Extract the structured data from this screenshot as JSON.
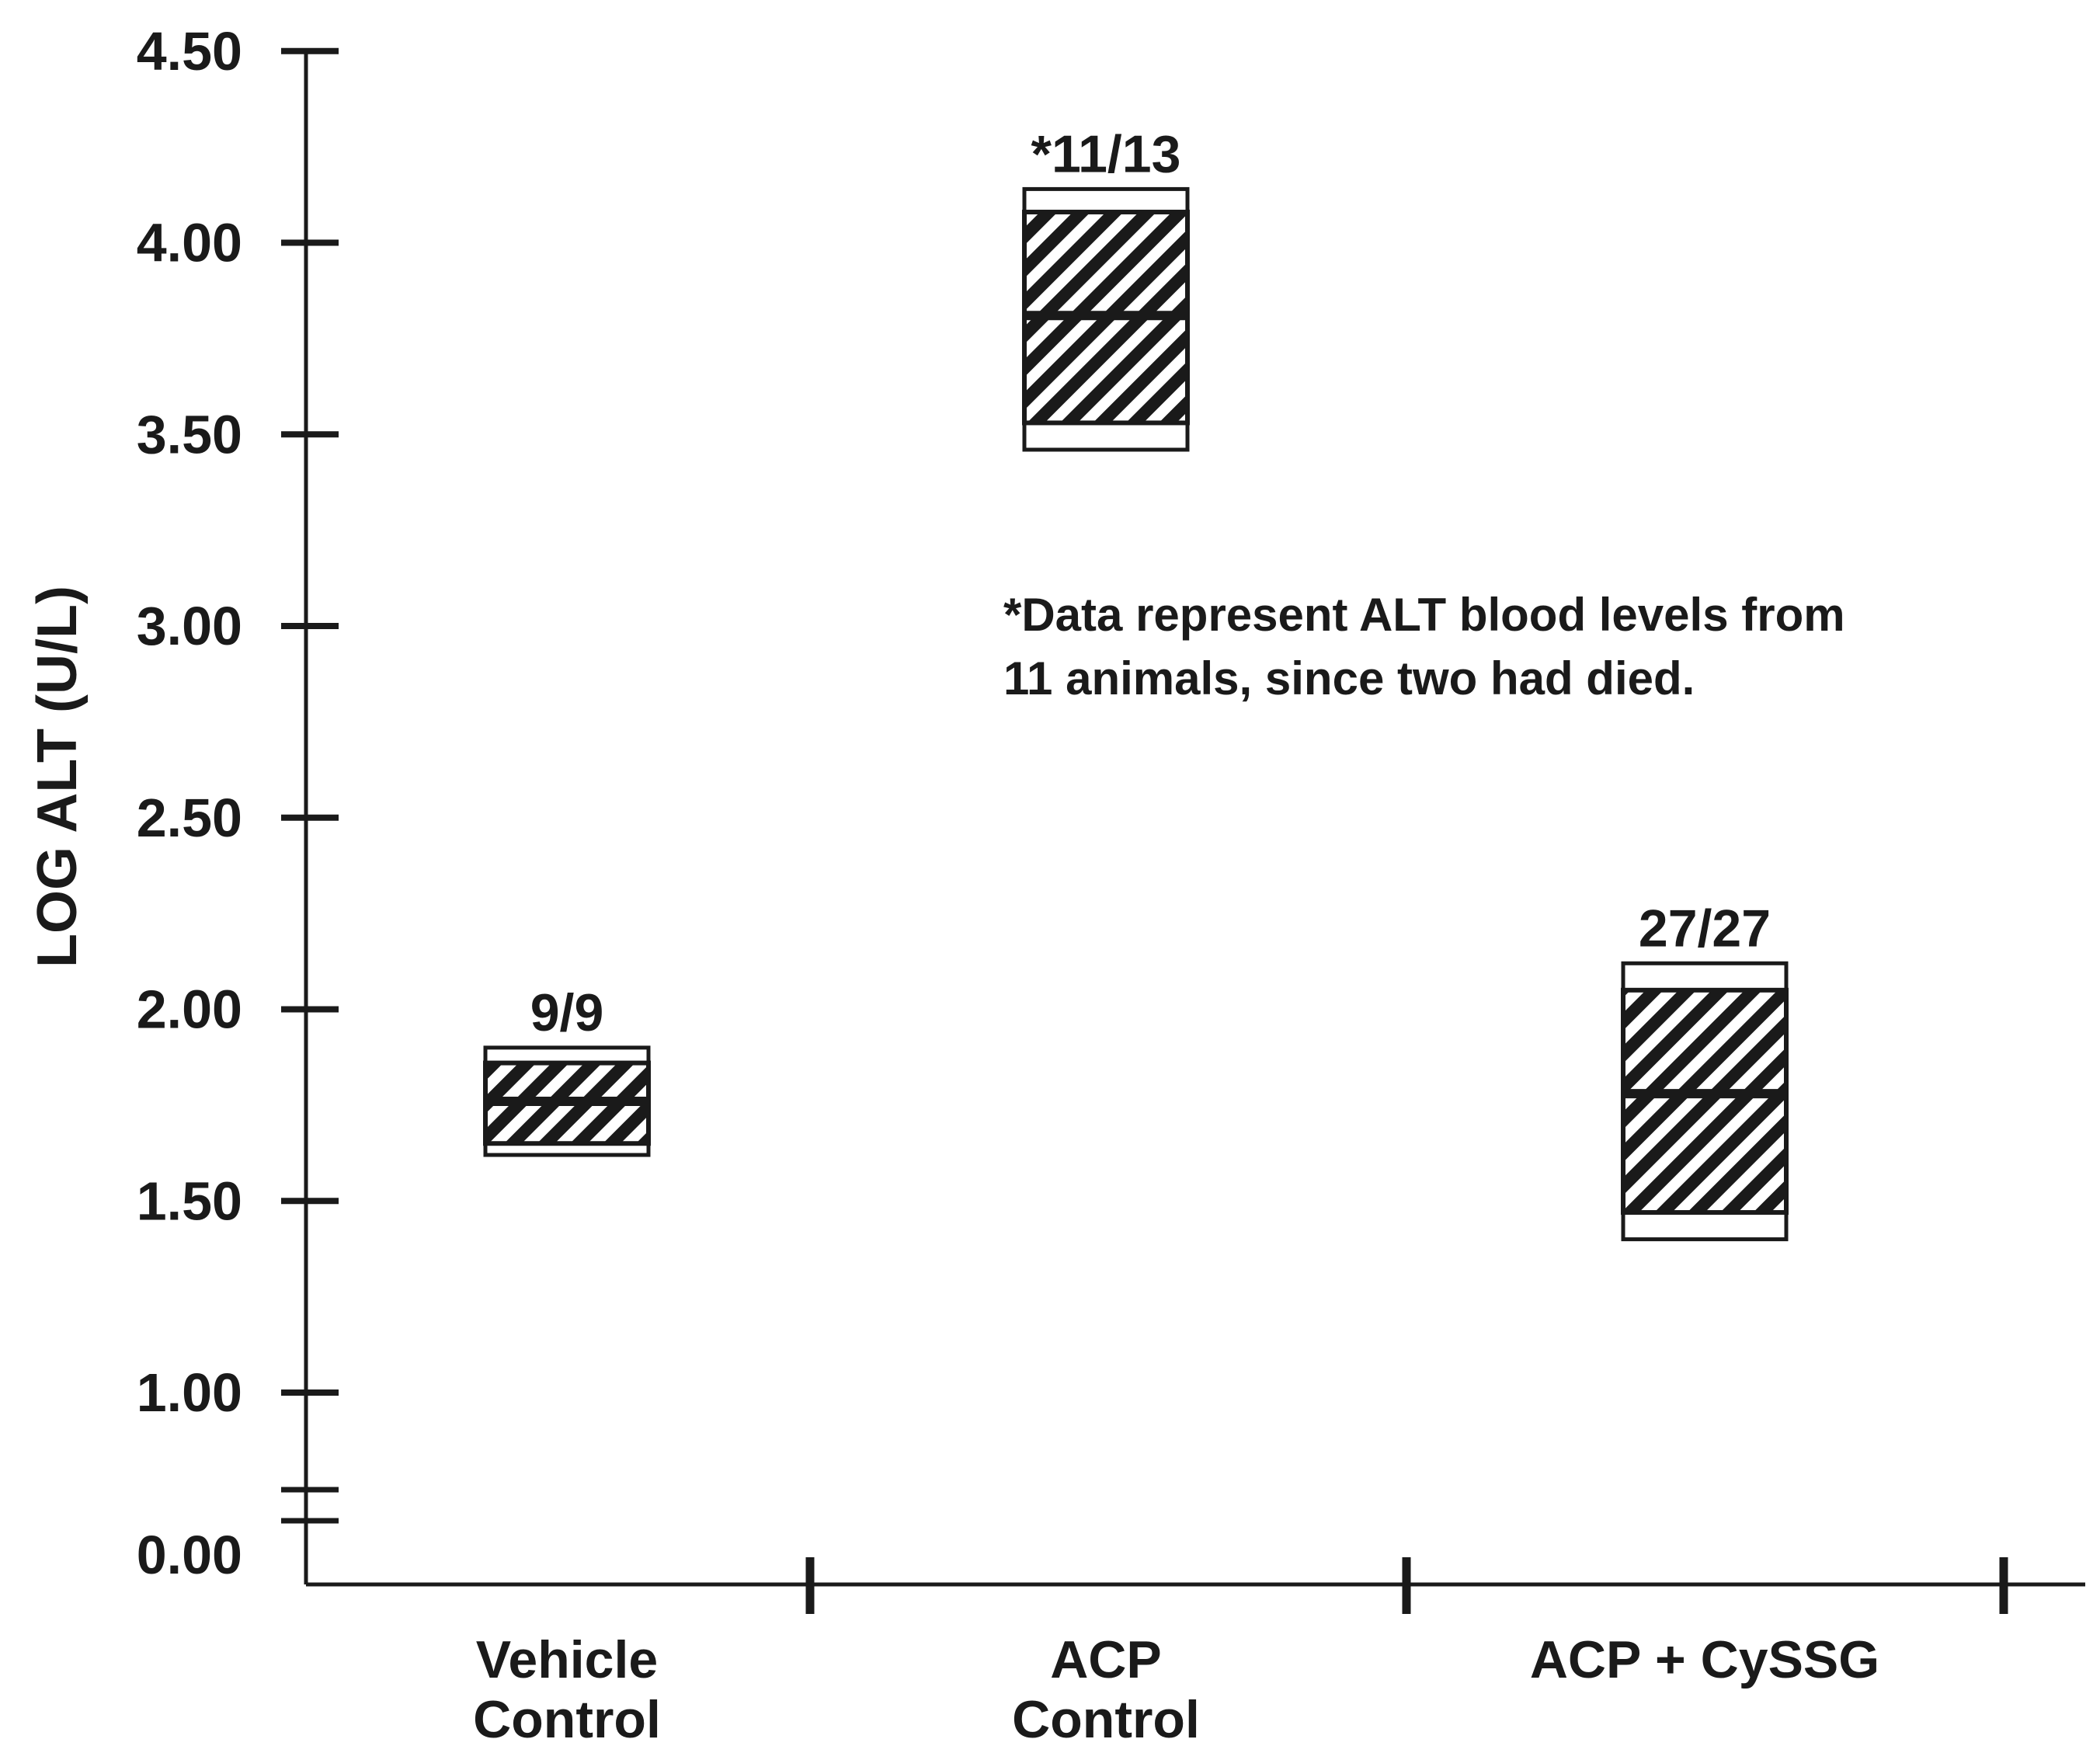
{
  "chart_data": {
    "type": "box",
    "title": "",
    "xlabel": "",
    "ylabel": "LOG ALT (U/L)",
    "ylim": [
      0,
      4.5
    ],
    "y_ticks": [
      "0.00",
      "1.00",
      "1.50",
      "2.00",
      "2.50",
      "3.00",
      "3.50",
      "4.00",
      "4.50"
    ],
    "axis_break": true,
    "categories": [
      {
        "line1": "Vehicle",
        "line2": "Control"
      },
      {
        "line1": "ACP",
        "line2": "Control"
      },
      {
        "line1": "ACP + CySSG",
        "line2": ""
      }
    ],
    "boxes": [
      {
        "group": "Vehicle Control",
        "count": "9/9",
        "min": 1.62,
        "q1": 1.65,
        "median": 1.76,
        "q3": 1.86,
        "max": 1.9
      },
      {
        "group": "ACP Control",
        "count": "*11/13",
        "min": 3.46,
        "q1": 3.53,
        "median": 3.81,
        "q3": 4.08,
        "max": 4.14
      },
      {
        "group": "ACP + CySSG",
        "count": "27/27",
        "min": 1.4,
        "q1": 1.47,
        "median": 1.78,
        "q3": 2.05,
        "max": 2.12
      }
    ],
    "annotation": {
      "line1": "*Data represent ALT blood levels from",
      "line2": "11 animals, since two had died."
    }
  }
}
